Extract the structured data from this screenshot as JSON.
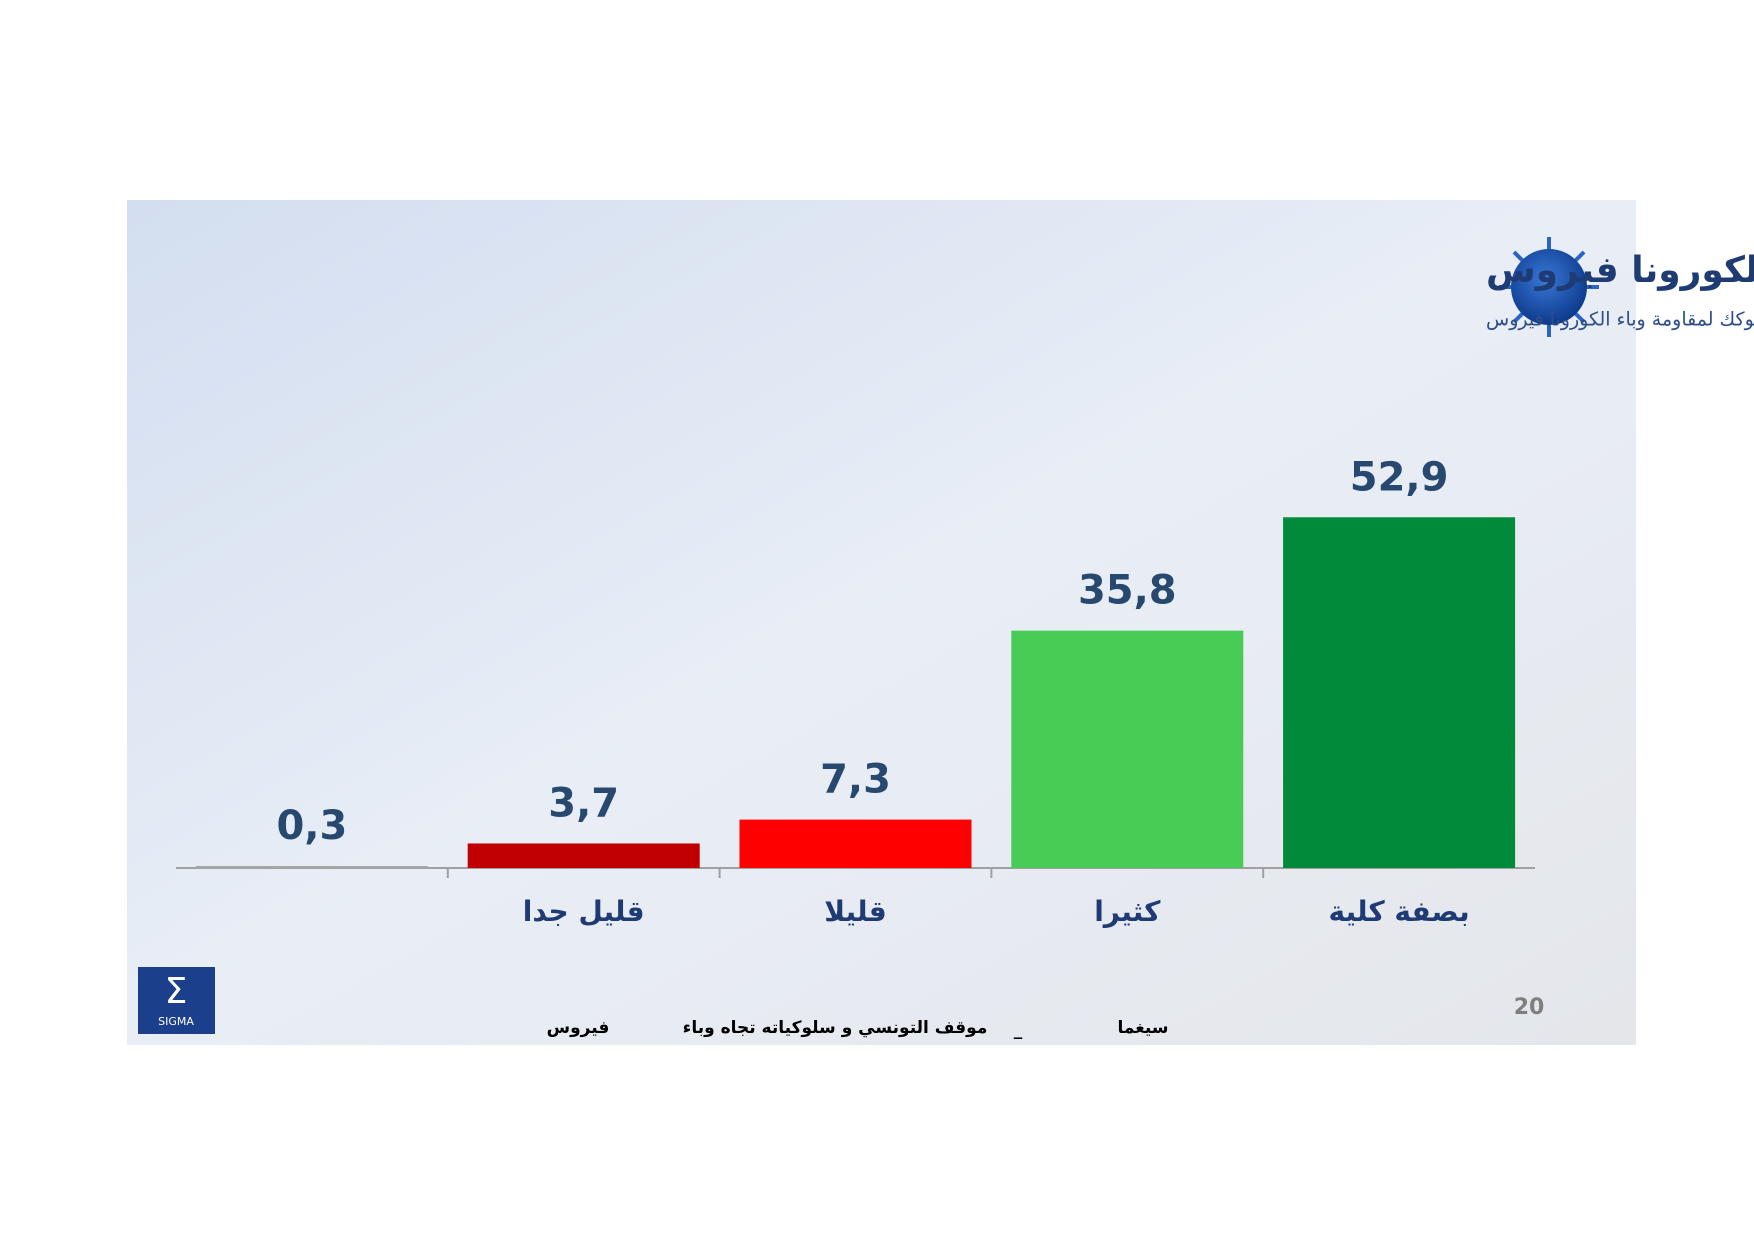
{
  "chart_data": {
    "type": "bar",
    "title": "درجة تغير سلوك المواطن التونسي لمقاومة وباء الكورونا فيروس",
    "subtitle": "إلى أي حد غيرت سلوكك لمقاومة وباء الكورونا فيروس",
    "categories": [
      null,
      "قليل جدا",
      "قليلا",
      "كثيرا",
      "بصفة كلية"
    ],
    "values": [
      0.3,
      3.7,
      7.3,
      35.8,
      52.9
    ],
    "value_labels": [
      "0,3",
      "3,7",
      "7,3",
      "35,8",
      "52,9"
    ],
    "colors": [
      "#a6a6a6",
      "#c00000",
      "#ff0000",
      "#49cc55",
      "#008a3a"
    ],
    "footer": [
      "فيروس",
      "موقف التونسي و سلوكياته تجاه وباء",
      "_",
      "سيغما"
    ],
    "page_number": "20",
    "logo_text": "SIGMA"
  }
}
